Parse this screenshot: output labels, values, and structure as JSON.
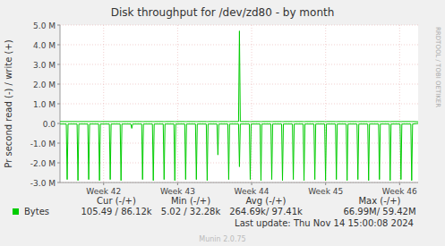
{
  "chart_data": {
    "type": "line",
    "title": "Disk throughput for /dev/zd80 - by month",
    "y_label": "Pr second read (-) / write (+)",
    "watermark": "RRDTOOL / TOBI OETIKER",
    "last_update": "Last update:  Thu Nov 14 15:00:08 2024",
    "footer": "Munin 2.0.75",
    "legend": "bottom",
    "grid": true,
    "stats": {
      "headers": [
        "Cur (-/+)",
        "Min (-/+)",
        "Avg (-/+)",
        "Max (-/+)"
      ],
      "values": [
        "105.49 / 86.12k",
        "5.02 / 32.28k",
        "264.69k/ 97.41k",
        "66.99M/ 59.42M"
      ]
    },
    "xlim": [
      41.41,
      46.25
    ],
    "xticks": [
      {
        "value": 42,
        "label": "Week 42"
      },
      {
        "value": 43,
        "label": "Week 43"
      },
      {
        "value": 44,
        "label": "Week 44"
      },
      {
        "value": 45,
        "label": "Week 45"
      },
      {
        "value": 46,
        "label": "Week 46"
      }
    ],
    "ylim": [
      -3000000,
      5000000
    ],
    "yticks": [
      {
        "value": -3000000,
        "label": "-3.0 M"
      },
      {
        "value": -2000000,
        "label": "-2.0 M"
      },
      {
        "value": -1000000,
        "label": "-1.0 M"
      },
      {
        "value": 0,
        "label": "0.0"
      },
      {
        "value": 1000000,
        "label": "1.0 M"
      },
      {
        "value": 2000000,
        "label": "2.0 M"
      },
      {
        "value": 3000000,
        "label": "3.0 M"
      },
      {
        "value": 4000000,
        "label": "4.0 M"
      },
      {
        "value": 5000000,
        "label": "5.0 M"
      }
    ],
    "x": [
      41.41,
      41.495,
      41.507,
      41.519,
      41.641,
      41.653,
      41.665,
      41.786,
      41.798,
      41.81,
      41.932,
      41.944,
      41.956,
      42.077,
      42.089,
      42.101,
      42.223,
      42.235,
      42.247,
      42.368,
      42.38,
      42.392,
      42.514,
      42.526,
      42.538,
      42.659,
      42.671,
      42.683,
      42.805,
      42.817,
      42.829,
      42.95,
      42.962,
      42.974,
      43.096,
      43.108,
      43.12,
      43.241,
      43.253,
      43.265,
      43.387,
      43.399,
      43.411,
      43.532,
      43.544,
      43.556,
      43.678,
      43.69,
      43.702,
      43.823,
      43.835,
      43.847,
      43.969,
      43.981,
      43.993,
      44.114,
      44.126,
      44.138,
      44.26,
      44.272,
      44.284,
      44.405,
      44.417,
      44.429,
      44.551,
      44.563,
      44.575,
      44.696,
      44.708,
      44.72,
      44.842,
      44.854,
      44.866,
      44.987,
      44.999,
      45.011,
      45.133,
      45.145,
      45.157,
      45.278,
      45.29,
      45.302,
      45.424,
      45.436,
      45.448,
      45.569,
      45.581,
      45.593,
      45.715,
      45.727,
      45.739,
      45.86,
      45.872,
      45.884,
      46.006,
      46.018,
      46.03,
      46.151,
      46.163,
      46.175,
      46.25
    ],
    "series": [
      {
        "name": "Bytes",
        "color": "#00cc00",
        "values": [
          97000,
          97000,
          97000,
          97000,
          97000,
          97000,
          97000,
          97000,
          97000,
          97000,
          97000,
          97000,
          97000,
          97000,
          97000,
          97000,
          97000,
          97000,
          97000,
          97000,
          97000,
          97000,
          97000,
          97000,
          97000,
          97000,
          97000,
          97000,
          97000,
          97000,
          97000,
          97000,
          97000,
          97000,
          97000,
          97000,
          97000,
          97000,
          97000,
          97000,
          97000,
          97000,
          97000,
          97000,
          97000,
          97000,
          97000,
          97000,
          97000,
          97000,
          4700000,
          97000,
          97000,
          97000,
          97000,
          97000,
          97000,
          97000,
          97000,
          97000,
          97000,
          97000,
          97000,
          97000,
          97000,
          97000,
          97000,
          97000,
          97000,
          97000,
          97000,
          97000,
          97000,
          97000,
          97000,
          97000,
          97000,
          97000,
          97000,
          97000,
          97000,
          97000,
          97000,
          97000,
          97000,
          97000,
          97000,
          97000,
          97000,
          97000,
          97000,
          97000,
          97000,
          97000,
          97000,
          97000,
          97000,
          97000,
          97000,
          97000,
          86120
        ]
      },
      {
        "color": "#00cc00",
        "values": [
          -30000,
          -30000,
          -2850000,
          -30000,
          -30000,
          -2900000,
          -30000,
          -30000,
          -2850000,
          -30000,
          -30000,
          -2900000,
          -30000,
          -30000,
          -2850000,
          -30000,
          -30000,
          -2900000,
          -30000,
          -30000,
          -250000,
          -30000,
          -30000,
          -2850000,
          -30000,
          -30000,
          -2900000,
          -30000,
          -30000,
          -2850000,
          -30000,
          -30000,
          -2900000,
          -30000,
          -30000,
          -2850000,
          -30000,
          -30000,
          -2850000,
          -30000,
          -30000,
          -2900000,
          -30000,
          -30000,
          -1600000,
          -30000,
          -30000,
          -2850000,
          -30000,
          -30000,
          -2200000,
          -30000,
          -30000,
          -2850000,
          -30000,
          -30000,
          -2900000,
          -30000,
          -30000,
          -2850000,
          -30000,
          -30000,
          -2900000,
          -30000,
          -30000,
          -2850000,
          -30000,
          -30000,
          -2900000,
          -30000,
          -30000,
          -2850000,
          -30000,
          -30000,
          -2900000,
          -30000,
          -30000,
          -2850000,
          -30000,
          -30000,
          -2900000,
          -30000,
          -30000,
          -2850000,
          -30000,
          -30000,
          -2900000,
          -30000,
          -30000,
          -2850000,
          -30000,
          -30000,
          -2900000,
          -30000,
          -30000,
          -2850000,
          -30000,
          -30000,
          -2900000,
          -30000,
          -105
        ]
      }
    ]
  }
}
